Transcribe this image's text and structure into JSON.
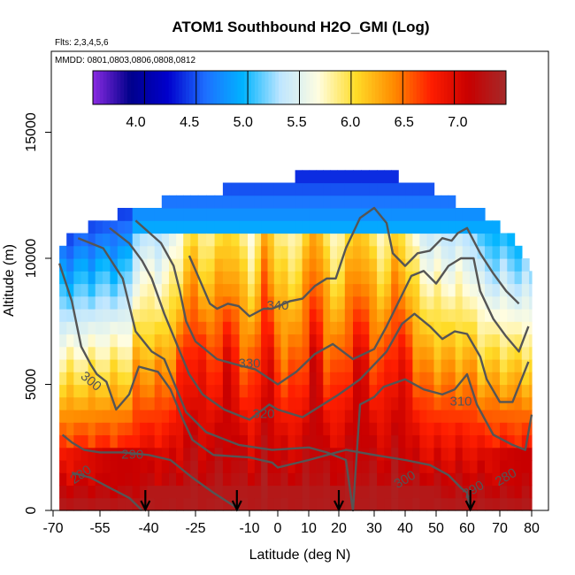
{
  "chart_data": {
    "type": "heatmap",
    "title": "ATOM1 Southbound H2O_GMI (Log)",
    "flights_note": "Flts: 2,3,4,5,6",
    "dates_note": "MMDD: 0801,0803,0806,0808,0812",
    "xlabel": "Latitude (deg N)",
    "ylabel": "Altitude (m)",
    "xlim": [
      -70,
      80
    ],
    "ylim": [
      0,
      17500
    ],
    "x_ticks": [
      -70,
      -55,
      -40,
      -25,
      -10,
      0,
      10,
      20,
      30,
      40,
      50,
      60,
      70,
      80
    ],
    "x_tick_labels": [
      "-70",
      "-55",
      "-40",
      "-25",
      "-10",
      "0",
      "10",
      "20",
      "30",
      "40",
      "50",
      "60",
      "70",
      "80"
    ],
    "y_ticks": [
      0,
      5000,
      10000,
      15000
    ],
    "y_tick_labels": [
      "0",
      "5000",
      "10000",
      "15000"
    ],
    "colorbar": {
      "min": 3.6,
      "max": 7.45,
      "ticks": [
        4.0,
        4.5,
        5.0,
        5.5,
        6.0,
        6.5,
        7.0
      ],
      "tick_labels": [
        "4.0",
        "4.5",
        "5.0",
        "5.5",
        "6.0",
        "6.5",
        "7.0"
      ],
      "colors": [
        "#8a2be2",
        "#00008b",
        "#0000cd",
        "#1e6fff",
        "#00b4ff",
        "#bfe6ff",
        "#fffde0",
        "#ffdc28",
        "#ff8c00",
        "#ff1e00",
        "#c80000",
        "#a52a2a"
      ]
    },
    "contours": [
      {
        "label": "280",
        "points": [
          [
            -64,
            1500
          ],
          [
            -58,
            1300
          ],
          [
            -52,
            900
          ],
          [
            -46,
            500
          ],
          [
            -42,
            0
          ]
        ]
      },
      {
        "label": "290",
        "points": [
          [
            -67,
            3000
          ],
          [
            -64,
            2700
          ],
          [
            -60,
            2400
          ],
          [
            -55,
            2300
          ],
          [
            -48,
            2300
          ],
          [
            -40,
            2200
          ],
          [
            -33,
            2000
          ],
          [
            -26,
            1300
          ],
          [
            -20,
            700
          ],
          [
            -14,
            150
          ],
          [
            -13,
            0
          ]
        ]
      },
      {
        "label": "300",
        "points": [
          [
            -68,
            9800
          ],
          [
            -64,
            8300
          ],
          [
            -61,
            6500
          ],
          [
            -58,
            5800
          ],
          [
            -56,
            5400
          ],
          [
            -53,
            5100
          ],
          [
            -50,
            4000
          ],
          [
            -46,
            4600
          ],
          [
            -43,
            5700
          ],
          [
            -37,
            5500
          ],
          [
            -33,
            4800
          ],
          [
            -29,
            3600
          ],
          [
            -26,
            2800
          ],
          [
            -20,
            2200
          ],
          [
            -10,
            2100
          ],
          [
            -2,
            1900
          ],
          [
            0,
            1700
          ],
          [
            10,
            2000
          ],
          [
            22,
            2400
          ],
          [
            30,
            2200
          ],
          [
            40,
            2000
          ],
          [
            48,
            1800
          ],
          [
            54,
            1400
          ],
          [
            58,
            900
          ],
          [
            60,
            700
          ],
          [
            61,
            0
          ]
        ]
      },
      {
        "label": "310",
        "points": [
          [
            -62,
            10800
          ],
          [
            -54,
            10400
          ],
          [
            -48,
            9200
          ],
          [
            -44,
            7100
          ],
          [
            -39,
            6300
          ],
          [
            -35,
            6000
          ],
          [
            -31,
            4800
          ],
          [
            -28,
            3900
          ],
          [
            -22,
            3100
          ],
          [
            -13,
            2600
          ],
          [
            -2,
            2400
          ],
          [
            10,
            2500
          ],
          [
            16,
            2300
          ],
          [
            22,
            2000
          ],
          [
            24,
            0
          ],
          [
            26,
            4200
          ],
          [
            30,
            4500
          ],
          [
            33,
            4900
          ],
          [
            40,
            5200
          ],
          [
            46,
            4800
          ],
          [
            52,
            4600
          ],
          [
            56,
            4800
          ],
          [
            60,
            5400
          ],
          [
            63,
            4200
          ],
          [
            68,
            3000
          ],
          [
            74,
            2600
          ],
          [
            78,
            2400
          ],
          [
            80,
            3800
          ]
        ]
      },
      {
        "label": "320",
        "points": [
          [
            -52,
            11200
          ],
          [
            -46,
            10600
          ],
          [
            -42,
            9900
          ],
          [
            -39,
            9200
          ],
          [
            -35,
            7800
          ],
          [
            -31,
            6600
          ],
          [
            -27,
            5400
          ],
          [
            -23,
            4600
          ],
          [
            -17,
            4000
          ],
          [
            -10,
            3600
          ],
          [
            -3,
            4200
          ],
          [
            0,
            4000
          ],
          [
            8,
            3700
          ],
          [
            20,
            4600
          ],
          [
            26,
            5200
          ],
          [
            34,
            6300
          ],
          [
            39,
            7400
          ],
          [
            43,
            7800
          ],
          [
            48,
            7300
          ],
          [
            52,
            6800
          ],
          [
            56,
            7100
          ],
          [
            60,
            7000
          ],
          [
            64,
            6100
          ],
          [
            66,
            5200
          ],
          [
            70,
            4300
          ],
          [
            74,
            4300
          ],
          [
            79,
            5900
          ]
        ]
      },
      {
        "label": "330",
        "points": [
          [
            -44,
            11500
          ],
          [
            -36,
            10600
          ],
          [
            -32,
            9700
          ],
          [
            -30,
            8700
          ],
          [
            -28,
            7500
          ],
          [
            -25,
            6700
          ],
          [
            -19,
            6000
          ],
          [
            -14,
            5800
          ],
          [
            -8,
            5600
          ],
          [
            -4,
            5300
          ],
          [
            0,
            5000
          ],
          [
            6,
            5500
          ],
          [
            12,
            6200
          ],
          [
            18,
            6600
          ],
          [
            24,
            6000
          ],
          [
            30,
            6400
          ],
          [
            34,
            7300
          ],
          [
            38,
            8300
          ],
          [
            42,
            9300
          ],
          [
            46,
            9500
          ],
          [
            50,
            9000
          ],
          [
            54,
            9700
          ],
          [
            58,
            10000
          ],
          [
            62,
            10000
          ],
          [
            64,
            8700
          ],
          [
            68,
            7600
          ],
          [
            72,
            6900
          ],
          [
            76,
            6300
          ],
          [
            79,
            7300
          ]
        ]
      },
      {
        "label": "340",
        "points": [
          [
            -27,
            10100
          ],
          [
            -24,
            9200
          ],
          [
            -21,
            8200
          ],
          [
            -19,
            8000
          ],
          [
            -16,
            8200
          ],
          [
            -13,
            8100
          ],
          [
            -10,
            7700
          ],
          [
            -5,
            8000
          ],
          [
            -2,
            8000
          ],
          [
            4,
            8300
          ],
          [
            8,
            8400
          ],
          [
            12,
            8900
          ],
          [
            16,
            9200
          ],
          [
            19,
            9200
          ],
          [
            22,
            10400
          ],
          [
            26,
            11600
          ],
          [
            30,
            12000
          ],
          [
            34,
            11400
          ],
          [
            36,
            10200
          ],
          [
            40,
            9700
          ],
          [
            44,
            10200
          ],
          [
            48,
            10300
          ],
          [
            52,
            10800
          ],
          [
            55,
            10700
          ],
          [
            57,
            11000
          ],
          [
            60,
            11200
          ],
          [
            64,
            10200
          ],
          [
            68,
            9400
          ],
          [
            72,
            8700
          ],
          [
            76,
            8200
          ]
        ]
      }
    ],
    "profile_markers": [
      {
        "lat": -41
      },
      {
        "lat": -13.5
      },
      {
        "lat": 20
      },
      {
        "lat": 61
      }
    ]
  }
}
